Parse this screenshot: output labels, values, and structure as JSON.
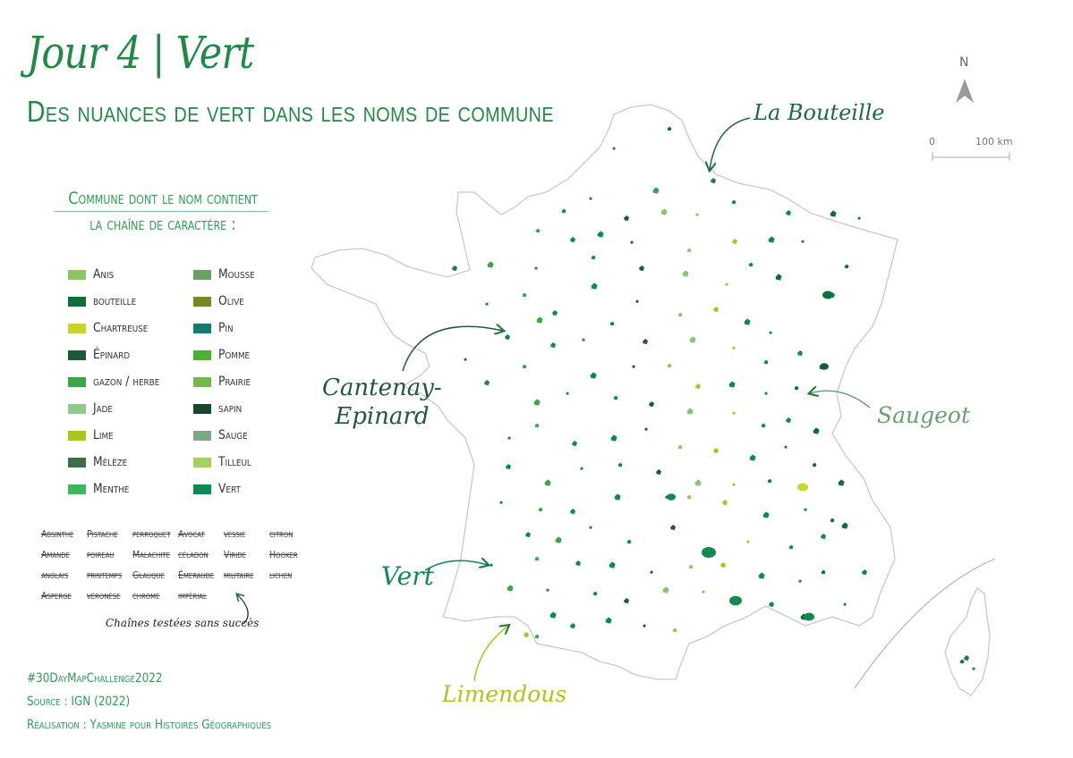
{
  "title": "Jour 4 | Vert",
  "subtitle": "Des nuances de vert dans les noms de commune",
  "legend": {
    "title_line1": "Commune dont le nom contient",
    "title_line2": "la chaîne de caractère :",
    "col1": [
      {
        "label": "Anis",
        "color": "#8cc467"
      },
      {
        "label": "bouteille",
        "color": "#0f6e3a"
      },
      {
        "label": "Chartreuse",
        "color": "#c8d62b"
      },
      {
        "label": "Épinard",
        "color": "#1e5a38"
      },
      {
        "label": "gazon / herbe",
        "color": "#3aa54a"
      },
      {
        "label": "Jade",
        "color": "#8fc98e"
      },
      {
        "label": "Lime",
        "color": "#a9c61c"
      },
      {
        "label": "Mélèze",
        "color": "#3c6e4c"
      },
      {
        "label": "Menthe",
        "color": "#3fb55e"
      }
    ],
    "col2": [
      {
        "label": "Mousse",
        "color": "#6aa063"
      },
      {
        "label": "Olive",
        "color": "#718a22"
      },
      {
        "label": "Pin",
        "color": "#167a6e"
      },
      {
        "label": "Pomme",
        "color": "#4daf3a"
      },
      {
        "label": "Prairie",
        "color": "#71b94b"
      },
      {
        "label": "sapin",
        "color": "#144a2a"
      },
      {
        "label": "Sauge",
        "color": "#7aa981"
      },
      {
        "label": "Tilleul",
        "color": "#a6cf64"
      },
      {
        "label": "Vert",
        "color": "#0d8a50"
      }
    ]
  },
  "tested": {
    "rows": [
      [
        "Absinthe",
        "Pistache",
        "perroquet",
        "Avocat",
        "vessie",
        "citron"
      ],
      [
        "Amande",
        "poireau",
        "Malachite",
        "céladon",
        "Viride",
        "Hooker"
      ],
      [
        "anglais",
        "printemps",
        "Glauque",
        "Émeraude",
        "militaire",
        "lichen"
      ],
      [
        "Asperge",
        "véronèse",
        "chrome",
        "impérial"
      ]
    ],
    "note": "Chaînes testées sans succès"
  },
  "footer": {
    "hashtag": "#30DayMapChallenge2022",
    "source": "Source : IGN (2022)",
    "credit": "Réalisation : Yasmine pour Histoires Géographiques"
  },
  "annotations": {
    "bouteille": {
      "label": "La Bouteille",
      "color": "#1d6b3c"
    },
    "cantenay": {
      "label_line1": "Cantenay-",
      "label_line2": "Epinard",
      "color": "#1e5a38"
    },
    "saugeot": {
      "label": "Saugeot",
      "color": "#6aa073"
    },
    "vert": {
      "label": "Vert",
      "color": "#0d8a50"
    },
    "limendous": {
      "label": "Limendous",
      "color": "#a9c61c"
    }
  },
  "north": {
    "label": "N"
  },
  "scale": {
    "zero": "0",
    "label": "100 km"
  },
  "colors": {
    "title": "#1f8a45",
    "accent": "#2e9b56",
    "outline": "#c9c9c9"
  }
}
